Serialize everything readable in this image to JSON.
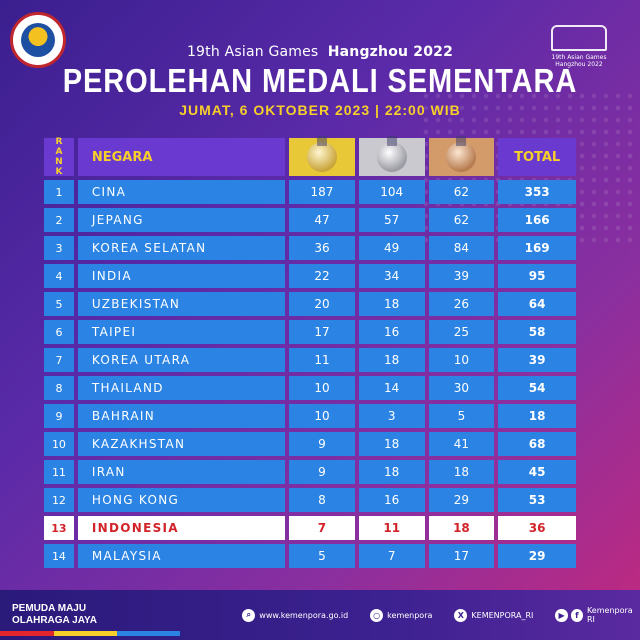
{
  "header": {
    "subtitle_event": "19th Asian Games",
    "subtitle_city": "Hangzhou 2022",
    "title": "PEROLEHAN MEDALI SEMENTARA",
    "date": "JUMAT, 6 OKTOBER 2023 | 22:00 WIB"
  },
  "logo_right": {
    "line1": "19th Asian Games",
    "line2": "Hangzhou 2022"
  },
  "table": {
    "headers": {
      "rank": "RANK",
      "country": "NEGARA",
      "total": "TOTAL"
    },
    "rows": [
      {
        "rank": "1",
        "country": "CINA",
        "gold": "187",
        "silver": "104",
        "bronze": "62",
        "total": "353"
      },
      {
        "rank": "2",
        "country": "JEPANG",
        "gold": "47",
        "silver": "57",
        "bronze": "62",
        "total": "166"
      },
      {
        "rank": "3",
        "country": "KOREA SELATAN",
        "gold": "36",
        "silver": "49",
        "bronze": "84",
        "total": "169"
      },
      {
        "rank": "4",
        "country": "INDIA",
        "gold": "22",
        "silver": "34",
        "bronze": "39",
        "total": "95"
      },
      {
        "rank": "5",
        "country": "UZBEKISTAN",
        "gold": "20",
        "silver": "18",
        "bronze": "26",
        "total": "64"
      },
      {
        "rank": "6",
        "country": "TAIPEI",
        "gold": "17",
        "silver": "16",
        "bronze": "25",
        "total": "58"
      },
      {
        "rank": "7",
        "country": "KOREA UTARA",
        "gold": "11",
        "silver": "18",
        "bronze": "10",
        "total": "39"
      },
      {
        "rank": "8",
        "country": "THAILAND",
        "gold": "10",
        "silver": "14",
        "bronze": "30",
        "total": "54"
      },
      {
        "rank": "9",
        "country": "BAHRAIN",
        "gold": "10",
        "silver": "3",
        "bronze": "5",
        "total": "18"
      },
      {
        "rank": "10",
        "country": "KAZAKHSTAN",
        "gold": "9",
        "silver": "18",
        "bronze": "41",
        "total": "68"
      },
      {
        "rank": "11",
        "country": "IRAN",
        "gold": "9",
        "silver": "18",
        "bronze": "18",
        "total": "45"
      },
      {
        "rank": "12",
        "country": "HONG KONG",
        "gold": "8",
        "silver": "16",
        "bronze": "29",
        "total": "53"
      },
      {
        "rank": "13",
        "country": "INDONESIA",
        "gold": "7",
        "silver": "11",
        "bronze": "18",
        "total": "36",
        "highlight": true
      },
      {
        "rank": "14",
        "country": "MALAYSIA",
        "gold": "5",
        "silver": "7",
        "bronze": "17",
        "total": "29"
      }
    ]
  },
  "footer": {
    "tagline_1": "PEMUDA MAJU",
    "tagline_2": "OLAHRAGA JAYA",
    "website": "www.kemenpora.go.id",
    "instagram": "kemenpora",
    "twitter": "KEMENPORA_RI",
    "youtube_facebook": "Kemenpora RI"
  },
  "colors": {
    "row_blue": "#2b84e3",
    "header_purple": "#6a3ad0",
    "accent_yellow": "#f6cf2a",
    "highlight_red": "#d2232a"
  }
}
